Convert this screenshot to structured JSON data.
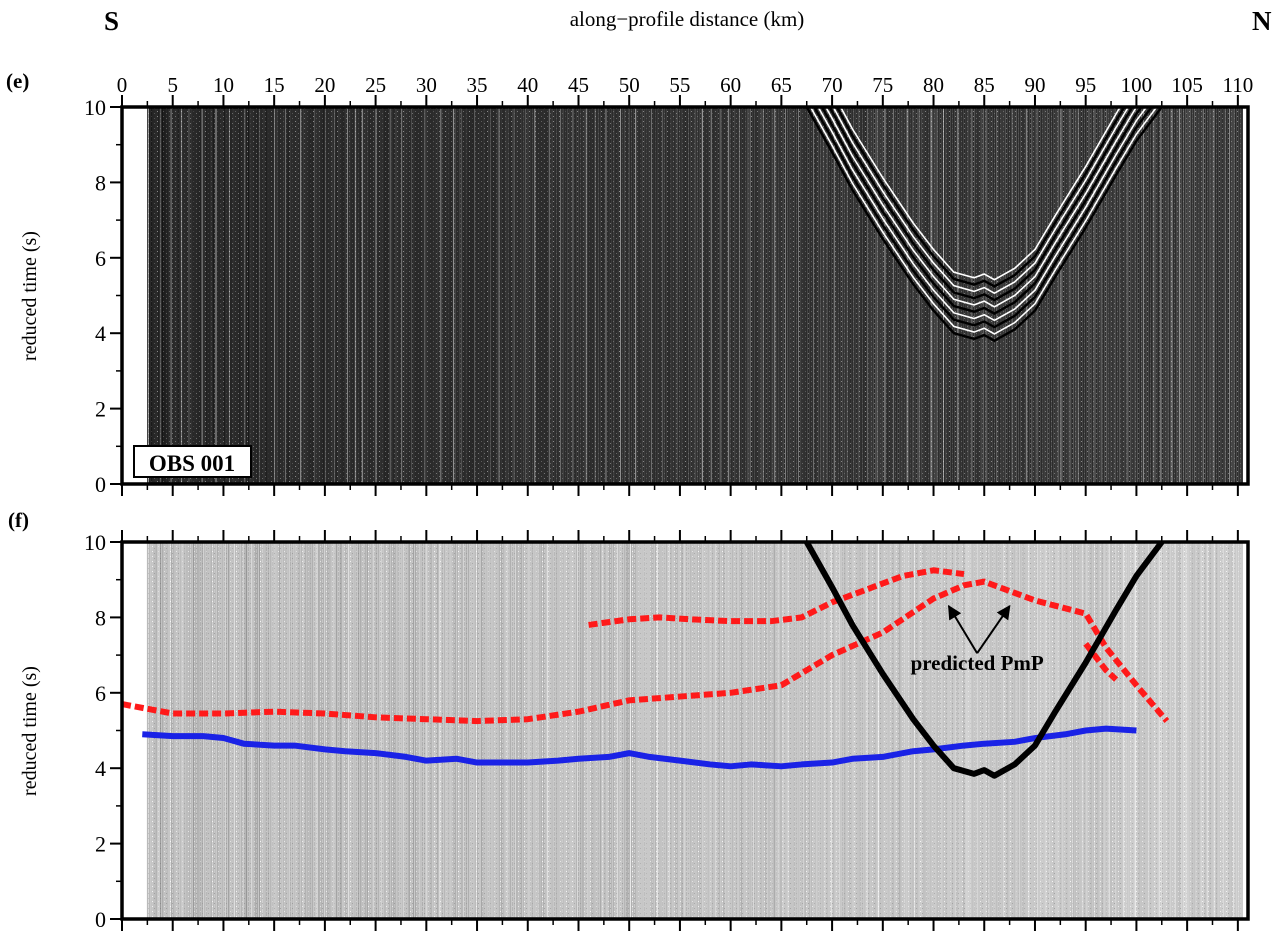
{
  "figure": {
    "south_label": "S",
    "north_label": "N",
    "top_axis_label": "along−profile distance (km)"
  },
  "panel_e": {
    "letter": "(e)",
    "ylabel": "reduced time (s)",
    "station_label": "OBS 001"
  },
  "panel_f": {
    "letter": "(f)",
    "ylabel": "reduced time (s)",
    "annotation": "predicted PmP"
  },
  "colors": {
    "seismic_dark": "#151515",
    "seismic_light": "#bdbdbd",
    "pick_red": "#ff1a1a",
    "pick_blue": "#1a22e6",
    "model_black": "#000000"
  },
  "chart_data": [
    {
      "type": "heatmap",
      "panel": "(e)",
      "description_of_content": "seismic record section",
      "xlim": [
        0,
        111
      ],
      "ylim": [
        0,
        10
      ],
      "x_ticks": [
        0,
        5,
        10,
        15,
        20,
        25,
        30,
        35,
        40,
        45,
        50,
        55,
        60,
        65,
        70,
        75,
        80,
        85,
        90,
        95,
        100,
        105,
        110
      ],
      "x_tick_labels": [
        "0",
        "5",
        "10",
        "15",
        "20",
        "25",
        "30",
        "35",
        "40",
        "45",
        "50",
        "55",
        "60",
        "65",
        "70",
        "75",
        "80",
        "85",
        "90",
        "95",
        "100",
        "105",
        "110"
      ],
      "y_ticks": [
        0,
        2,
        4,
        6,
        8,
        10
      ],
      "y_tick_labels": [
        "0",
        "2",
        "4",
        "6",
        "8",
        "10"
      ],
      "data_xrange": [
        2.5,
        110.5
      ],
      "direct_wave_apex": {
        "x": 84.5,
        "t": 3.6
      }
    },
    {
      "type": "line",
      "panel": "(f)",
      "xlim": [
        0,
        111
      ],
      "ylim": [
        0,
        10
      ],
      "x_ticks": [
        0,
        5,
        10,
        15,
        20,
        25,
        30,
        35,
        40,
        45,
        50,
        55,
        60,
        65,
        70,
        75,
        80,
        85,
        90,
        95,
        100,
        105,
        110
      ],
      "y_ticks": [
        0,
        2,
        4,
        6,
        8,
        10
      ],
      "y_tick_labels": [
        "0",
        "2",
        "4",
        "6",
        "8",
        "10"
      ],
      "series": [
        {
          "color": "#ff1a1a",
          "style": "dashed",
          "x": [
            0,
            5,
            10,
            15,
            20,
            25,
            30,
            35,
            40,
            45,
            50,
            55,
            60,
            65,
            70,
            75,
            80,
            83,
            85,
            90,
            95,
            97,
            100,
            103
          ],
          "y": [
            5.7,
            5.45,
            5.45,
            5.5,
            5.45,
            5.35,
            5.3,
            5.25,
            5.3,
            5.5,
            5.8,
            5.9,
            6.0,
            6.2,
            7.0,
            7.6,
            8.5,
            8.85,
            8.95,
            8.45,
            8.1,
            7.2,
            6.2,
            5.25
          ]
        },
        {
          "color": "#ff1a1a",
          "style": "dashed",
          "x": [
            46,
            50,
            53,
            56,
            60,
            64,
            67,
            70,
            74,
            77,
            80,
            83
          ],
          "y": [
            7.8,
            7.95,
            8.0,
            7.95,
            7.9,
            7.9,
            8.0,
            8.4,
            8.8,
            9.1,
            9.25,
            9.15
          ]
        },
        {
          "color": "#ff1a1a",
          "style": "dashed",
          "x": [
            95,
            96,
            97,
            98
          ],
          "y": [
            7.3,
            6.95,
            6.6,
            6.35
          ]
        },
        {
          "color": "#1a22e6",
          "style": "solid",
          "x": [
            2,
            5,
            8,
            10,
            12,
            15,
            17,
            20,
            22,
            25,
            28,
            30,
            33,
            35,
            38,
            40,
            43,
            45,
            48,
            50,
            52,
            55,
            58,
            60,
            62,
            65,
            67,
            70,
            72,
            75,
            78,
            80,
            83,
            85,
            88,
            90,
            93,
            95,
            97,
            100
          ],
          "y": [
            4.9,
            4.85,
            4.85,
            4.8,
            4.65,
            4.6,
            4.6,
            4.5,
            4.45,
            4.4,
            4.3,
            4.2,
            4.25,
            4.15,
            4.15,
            4.15,
            4.2,
            4.25,
            4.3,
            4.4,
            4.3,
            4.2,
            4.1,
            4.05,
            4.1,
            4.05,
            4.1,
            4.15,
            4.25,
            4.3,
            4.45,
            4.5,
            4.6,
            4.65,
            4.7,
            4.8,
            4.9,
            5.0,
            5.05,
            5.0
          ]
        },
        {
          "color": "#000000",
          "style": "solid",
          "x": [
            67.5,
            70,
            72,
            75,
            78,
            80,
            82,
            84,
            85,
            86,
            88,
            90,
            92,
            95,
            98,
            100,
            102.5
          ],
          "y": [
            10.0,
            8.8,
            7.8,
            6.5,
            5.3,
            4.6,
            4.0,
            3.85,
            3.95,
            3.8,
            4.1,
            4.6,
            5.5,
            6.8,
            8.2,
            9.1,
            10.0
          ]
        }
      ],
      "annotation_arrows_to": [
        {
          "x": 81.5,
          "y": 8.3
        },
        {
          "x": 87.5,
          "y": 8.3
        }
      ]
    }
  ]
}
